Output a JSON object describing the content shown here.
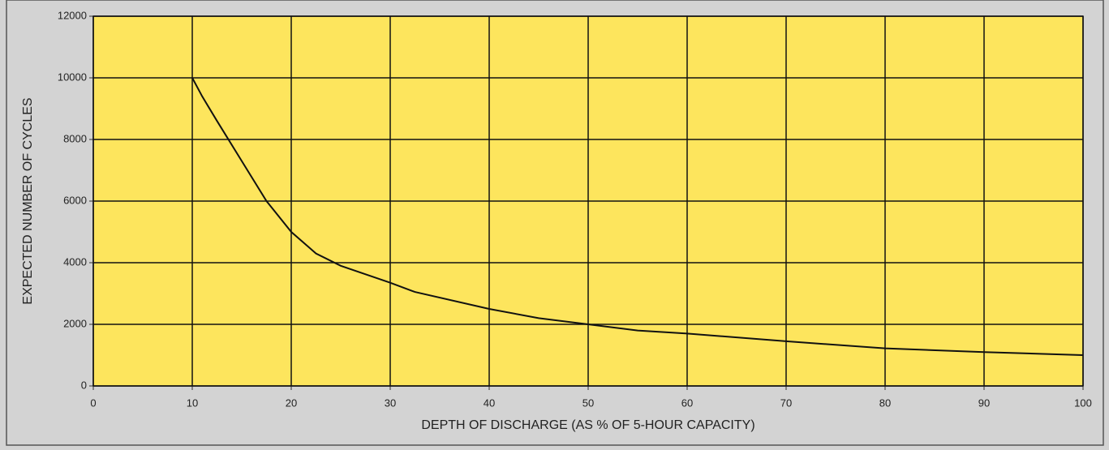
{
  "chart_data": {
    "type": "line",
    "x_label": "DEPTH OF DISCHARGE (AS % OF 5-HOUR CAPACITY)",
    "y_label": "EXPECTED NUMBER OF CYCLES",
    "x": [
      10,
      11,
      12.5,
      15,
      17.5,
      20,
      22.5,
      25,
      30,
      32.5,
      40,
      45,
      50,
      55,
      60,
      70,
      80,
      90,
      100
    ],
    "series": [
      {
        "name": "cycles",
        "color": "#111111",
        "values": [
          10000,
          9400,
          8600,
          7300,
          6000,
          5000,
          4300,
          3900,
          3350,
          3050,
          2500,
          2200,
          2000,
          1800,
          1700,
          1450,
          1220,
          1100,
          1000
        ]
      }
    ],
    "xlim": [
      0,
      100
    ],
    "xticks": [
      0,
      10,
      20,
      30,
      40,
      50,
      60,
      70,
      80,
      90,
      100
    ],
    "ylim": [
      0,
      12000
    ],
    "yticks": [
      0,
      2000,
      4000,
      6000,
      8000,
      10000,
      12000
    ],
    "grid": true,
    "plot_background": "#fde55d"
  }
}
